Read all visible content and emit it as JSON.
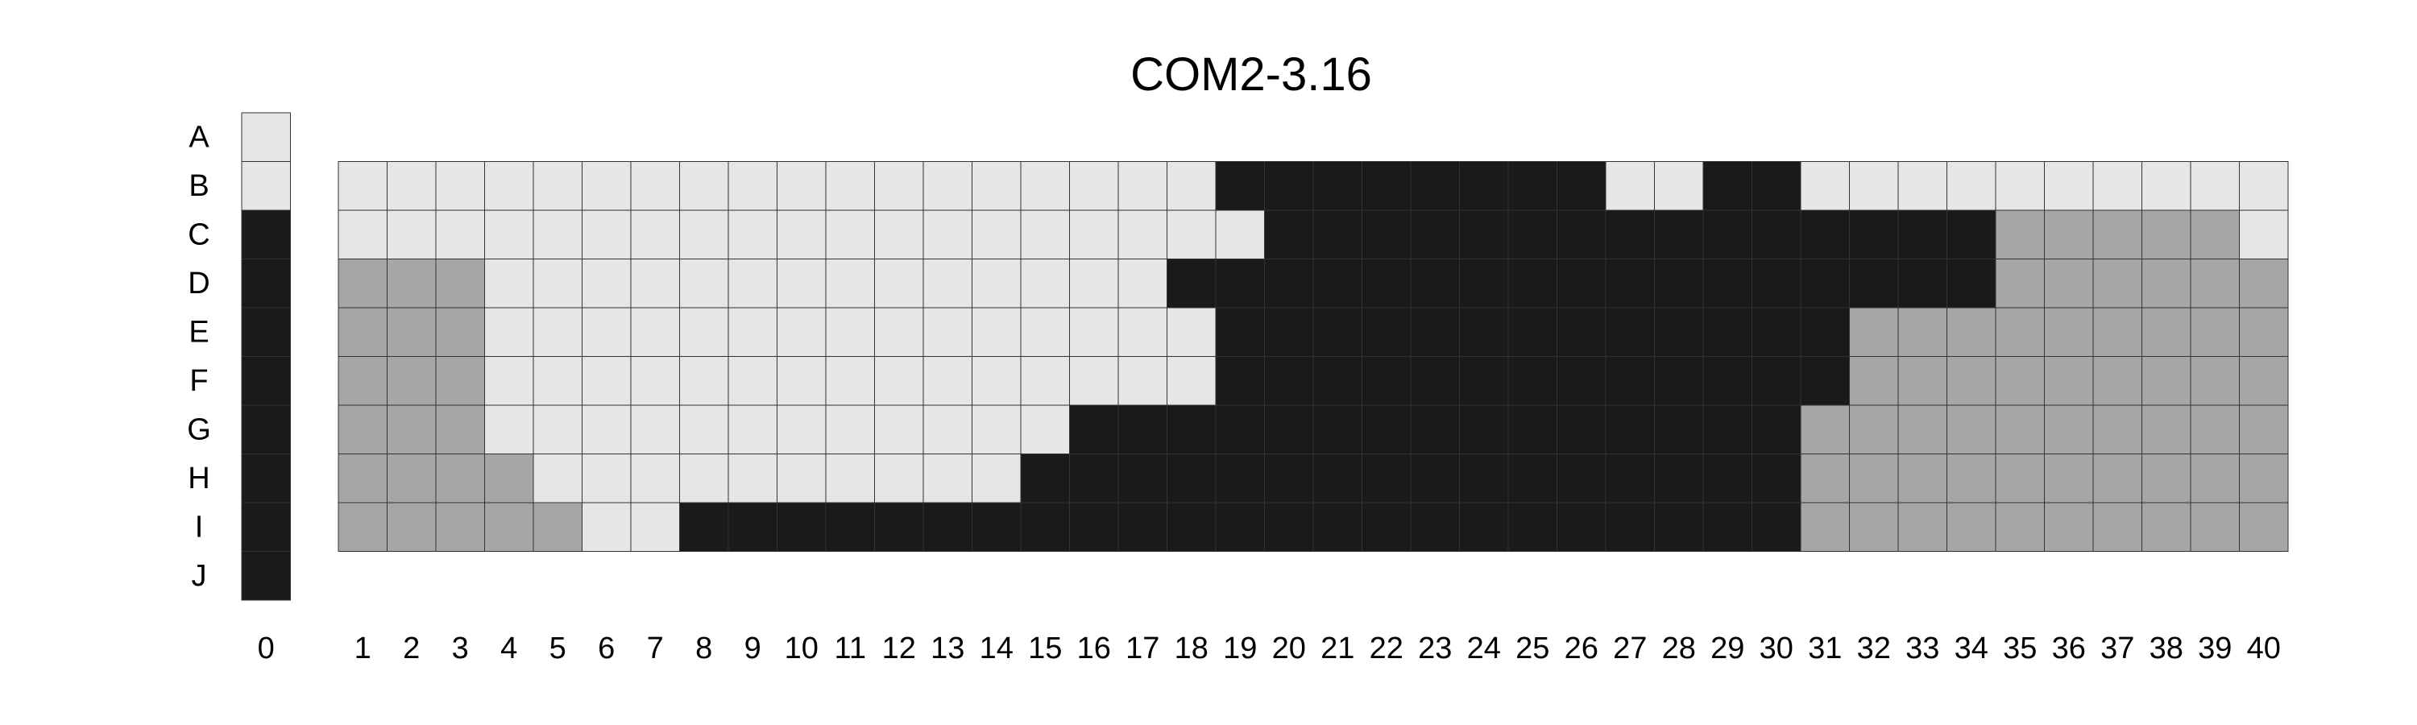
{
  "chart_data": {
    "type": "heatmap",
    "title": "COM2-3.16",
    "legend": "none",
    "grid": true,
    "rows": [
      "A",
      "B",
      "C",
      "D",
      "E",
      "F",
      "G",
      "H",
      "I",
      "J"
    ],
    "columns": [
      "0",
      "1",
      "2",
      "3",
      "4",
      "5",
      "6",
      "7",
      "8",
      "9",
      "10",
      "11",
      "12",
      "13",
      "14",
      "15",
      "16",
      "17",
      "18",
      "19",
      "20",
      "21",
      "22",
      "23",
      "24",
      "25",
      "26",
      "27",
      "28",
      "29",
      "30",
      "31",
      "32",
      "33",
      "34",
      "35",
      "36",
      "37",
      "38",
      "39",
      "40"
    ],
    "colors": {
      "L": "#e6e6e6",
      "M": "#a6a6a6",
      "D": "#1a1a1a"
    },
    "column0": [
      "L",
      "L",
      "D",
      "D",
      "D",
      "D",
      "D",
      "D",
      "D",
      "D"
    ],
    "grid_rows": [
      "B",
      "C",
      "D",
      "E",
      "F",
      "G",
      "H",
      "I"
    ],
    "grid_cells": [
      "LLLLLLLLLLLLLLLLLLDDDDDDDDLLDDLLLLLLLLLL",
      "LLLLLLLLLLLLLLLLLLLDDDDDDDDDDDDDDDMMMMML",
      "MMMLLLLLLLLLLLLLLDDDDDDDDDDDDDDDDDMMMMMM",
      "MMMLLLLLLLLLLLLLLLDDDDDDDDDDDDDMMMMMMMMM",
      "MMMLLLLLLLLLLLLLLLDDDDDDDDDDDDDMMMMMMMMM",
      "MMMLLLLLLLLLLLLDDDDDDDDDDDDDDDMMMMMMMMMM",
      "MMMMLLLLLLLLLLDDDDDDDDDDDDDDDDMMMMMMMMMM",
      "MMMMMLLDDDDDDDDDDDDDDDDDDDDDDDMMMMMMMMMM"
    ]
  }
}
